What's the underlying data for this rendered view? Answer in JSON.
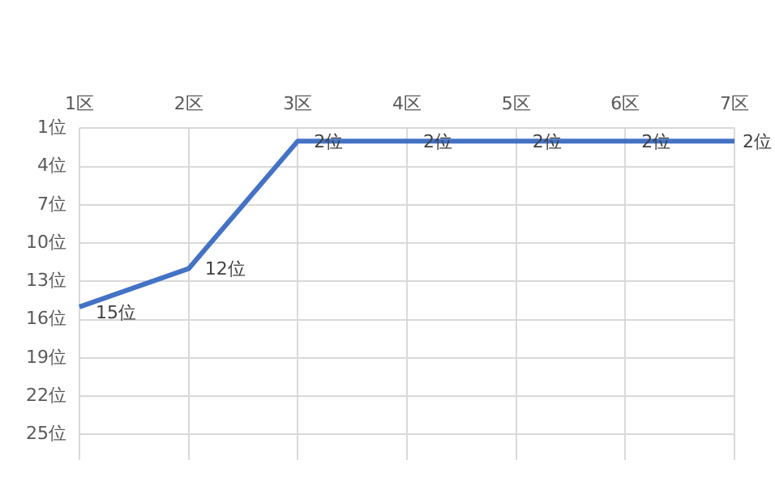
{
  "chart_data": {
    "type": "line",
    "categories": [
      "1区",
      "2区",
      "3区",
      "4区",
      "5区",
      "6区",
      "7区"
    ],
    "series": [
      {
        "color": "#4472c4",
        "values": [
          15,
          12,
          2,
          2,
          2,
          2,
          2
        ],
        "value_labels": [
          "15位",
          "12位",
          "2位",
          "2位",
          "2位",
          "2位",
          "2位"
        ]
      }
    ],
    "ylim": [
      27,
      1
    ],
    "yticks": [
      {
        "value": 1,
        "label": "1位"
      },
      {
        "value": 4,
        "label": "4位"
      },
      {
        "value": 7,
        "label": "7位"
      },
      {
        "value": 10,
        "label": "10位"
      },
      {
        "value": 13,
        "label": "13位"
      },
      {
        "value": 16,
        "label": "16位"
      },
      {
        "value": 19,
        "label": "19位"
      },
      {
        "value": 22,
        "label": "22位"
      },
      {
        "value": 25,
        "label": "25位"
      }
    ],
    "grid": true,
    "legend": false,
    "marker": "none",
    "line_style": "solid"
  }
}
